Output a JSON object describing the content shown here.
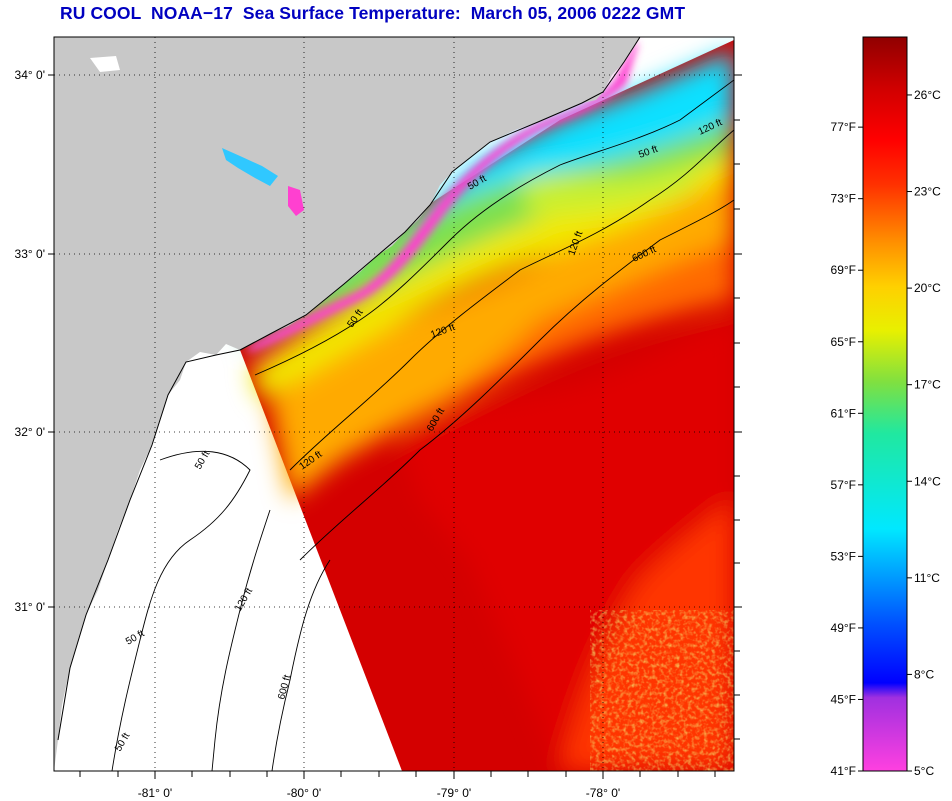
{
  "title": "RU COOL  NOAA−17  Sea Surface Temperature:  March 05, 2006 0222 GMT",
  "colors": {
    "title": "#0000c0",
    "land": "#c8c8c8",
    "no_data": "#ffffff"
  },
  "map": {
    "lon_labels": [
      "-81° 0'",
      "-80° 0'",
      "-79° 0'",
      "-78° 0'"
    ],
    "lat_labels": [
      "34° 0'",
      "33° 0'",
      "32° 0'",
      "31° 0'"
    ],
    "isobath_labels": [
      "50 ft",
      "50 ft",
      "50 ft",
      "50 ft",
      "50 ft",
      "50 ft",
      "120 ft",
      "120 ft",
      "120 ft",
      "120 ft",
      "120 ft",
      "600 ft",
      "600 ft",
      "600 ft"
    ]
  },
  "colorbar": {
    "fahrenheit_labels": [
      "41°F",
      "45°F",
      "49°F",
      "53°F",
      "57°F",
      "61°F",
      "65°F",
      "69°F",
      "73°F",
      "77°F"
    ],
    "celsius_labels": [
      "5°C",
      "8°C",
      "11°C",
      "14°C",
      "17°C",
      "20°C",
      "23°C",
      "26°C"
    ],
    "fahrenheit_values": [
      41,
      45,
      49,
      53,
      57,
      61,
      65,
      69,
      73,
      77
    ],
    "celsius_values": [
      5,
      8,
      11,
      14,
      17,
      20,
      23,
      26
    ],
    "range_c": [
      5,
      27.8
    ]
  }
}
